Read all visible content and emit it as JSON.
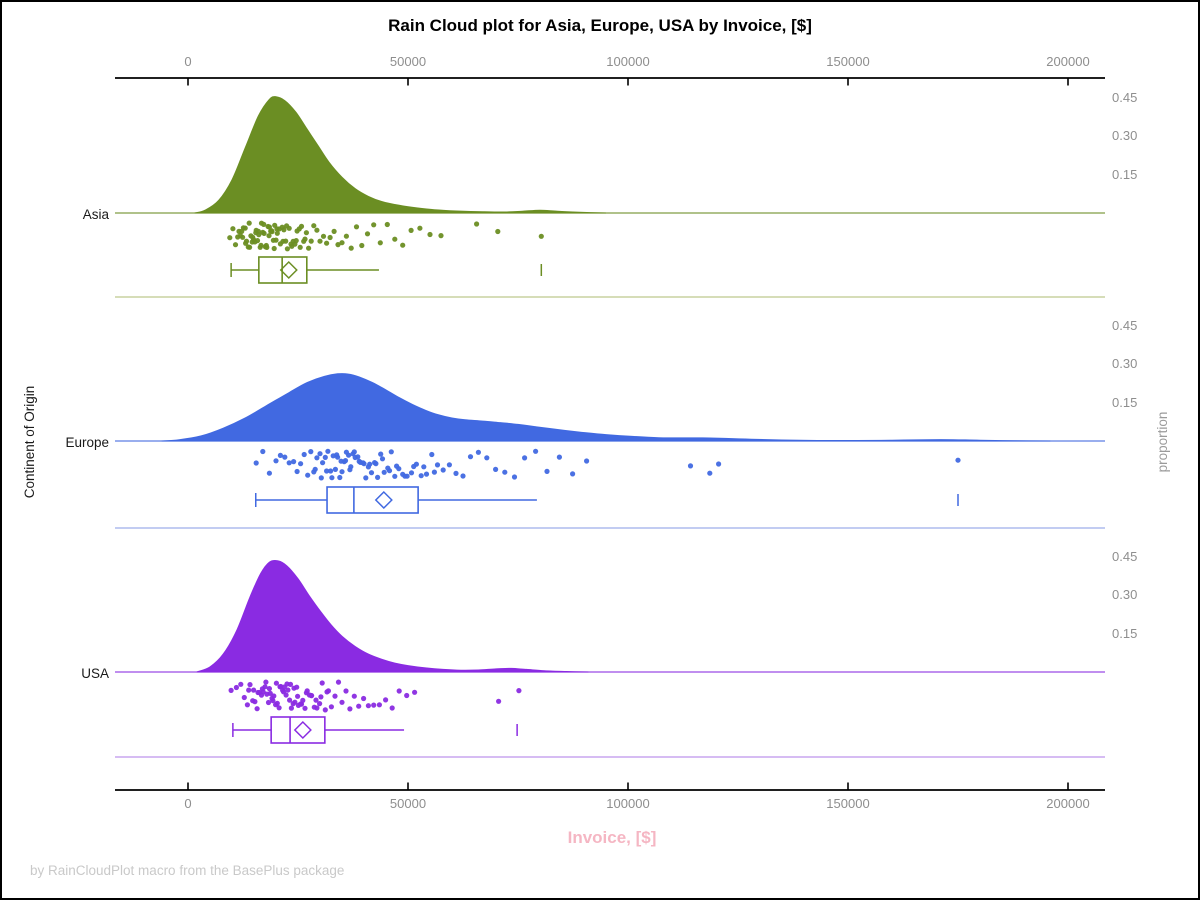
{
  "title": "Rain Cloud plot for Asia, Europe, USA by Invoice, [$]",
  "xlabel": "Invoice, [$]",
  "ylabel": "Continent of Origin",
  "y2label": "proportion",
  "footer": "by RainCloudPlot macro from the BasePlus package",
  "colors": {
    "axis": "#000000",
    "tick_text": "#8e8e8e",
    "footer_text": "#c9c9c9",
    "xlabel_pink": "#f5b6c3"
  },
  "chart_data": {
    "type": "raincloud",
    "title": "Rain Cloud plot for Asia, Europe, USA by Invoice, [$]",
    "xlabel": "Invoice, [$]",
    "ylabel": "Continent of Origin",
    "proportion_label": "proportion",
    "x_axis": {
      "ticks": [
        0,
        50000,
        100000,
        150000,
        200000
      ],
      "tick_labels": [
        "0",
        "50000",
        "100000",
        "150000",
        "200000"
      ]
    },
    "proportion_axis": {
      "ticks": [
        0.15,
        0.3,
        0.45
      ],
      "tick_labels": [
        "0.15",
        "0.30",
        "0.45"
      ]
    },
    "groups": [
      {
        "name": "Asia",
        "color": "#6B8E23",
        "light_color": "#c8d2a0",
        "density": [
          [
            1500,
            0
          ],
          [
            4000,
            0.012
          ],
          [
            7000,
            0.05
          ],
          [
            10000,
            0.13
          ],
          [
            13000,
            0.255
          ],
          [
            16000,
            0.38
          ],
          [
            18500,
            0.445
          ],
          [
            20000,
            0.455
          ],
          [
            22000,
            0.44
          ],
          [
            24500,
            0.395
          ],
          [
            27000,
            0.33
          ],
          [
            29500,
            0.265
          ],
          [
            32000,
            0.2
          ],
          [
            35000,
            0.14
          ],
          [
            38000,
            0.095
          ],
          [
            41000,
            0.065
          ],
          [
            44000,
            0.045
          ],
          [
            48000,
            0.03
          ],
          [
            52000,
            0.02
          ],
          [
            56000,
            0.013
          ],
          [
            61000,
            0.008
          ],
          [
            67000,
            0.005
          ],
          [
            72000,
            0.004
          ],
          [
            76000,
            0.007
          ],
          [
            80000,
            0.011
          ],
          [
            84000,
            0.007
          ],
          [
            89000,
            0.003
          ],
          [
            95000,
            0
          ]
        ],
        "box": {
          "whisker_low": 9800,
          "q1": 16100,
          "median": 21400,
          "mean": 22900,
          "q3": 27000,
          "whisker_high": 43400,
          "far_outlier": 80300
        },
        "rain": [
          9500,
          10200,
          10800,
          11300,
          11600,
          11900,
          12200,
          12400,
          12600,
          13000,
          13100,
          13300,
          13700,
          13900,
          14000,
          14300,
          14600,
          14700,
          14900,
          15200,
          15400,
          15500,
          15800,
          16000,
          16100,
          16400,
          16600,
          16700,
          17000,
          17200,
          17300,
          17600,
          17800,
          17900,
          18200,
          18400,
          18500,
          18800,
          19000,
          19100,
          19400,
          19600,
          19700,
          20000,
          20200,
          20300,
          20700,
          21000,
          21400,
          21600,
          21800,
          22200,
          22400,
          22600,
          23000,
          23400,
          23600,
          23900,
          24300,
          24600,
          24800,
          25300,
          25500,
          25800,
          26300,
          26600,
          26900,
          27400,
          28000,
          28600,
          29300,
          30000,
          30800,
          31500,
          32300,
          33200,
          34100,
          35000,
          36000,
          37100,
          38300,
          39500,
          40800,
          42200,
          43700,
          45300,
          47000,
          48800,
          50700,
          52700,
          55000,
          57500,
          65600,
          70400,
          80300
        ]
      },
      {
        "name": "Europe",
        "color": "#4169E1",
        "light_color": "#adbcee",
        "density": [
          [
            -6000,
            0
          ],
          [
            -2000,
            0.005
          ],
          [
            3000,
            0.02
          ],
          [
            8000,
            0.05
          ],
          [
            13000,
            0.09
          ],
          [
            18000,
            0.14
          ],
          [
            23000,
            0.19
          ],
          [
            27000,
            0.228
          ],
          [
            31000,
            0.253
          ],
          [
            34000,
            0.263
          ],
          [
            36500,
            0.262
          ],
          [
            39000,
            0.25
          ],
          [
            42000,
            0.228
          ],
          [
            45000,
            0.2
          ],
          [
            48000,
            0.17
          ],
          [
            51000,
            0.143
          ],
          [
            54000,
            0.12
          ],
          [
            57000,
            0.102
          ],
          [
            60000,
            0.09
          ],
          [
            63000,
            0.083
          ],
          [
            67000,
            0.078
          ],
          [
            71000,
            0.072
          ],
          [
            75000,
            0.065
          ],
          [
            79000,
            0.056
          ],
          [
            84000,
            0.045
          ],
          [
            89000,
            0.035
          ],
          [
            95000,
            0.025
          ],
          [
            101000,
            0.018
          ],
          [
            107000,
            0.013
          ],
          [
            112000,
            0.012
          ],
          [
            117000,
            0.012
          ],
          [
            122000,
            0.01
          ],
          [
            128000,
            0.007
          ],
          [
            135000,
            0.004
          ],
          [
            143000,
            0.002
          ],
          [
            152000,
            0.002
          ],
          [
            160000,
            0.003
          ],
          [
            168000,
            0.005
          ],
          [
            174000,
            0.005
          ],
          [
            180000,
            0.003
          ],
          [
            188000,
            0.001
          ],
          [
            196000,
            0
          ]
        ],
        "box": {
          "whisker_low": 15400,
          "q1": 31600,
          "median": 37700,
          "mean": 44500,
          "q3": 52300,
          "whisker_high": 79300,
          "far_outlier": 175000
        },
        "rain": [
          15500,
          17000,
          18500,
          20000,
          21000,
          22000,
          23000,
          24000,
          24800,
          25600,
          26400,
          27200,
          27900,
          28600,
          28900,
          29300,
          30000,
          30300,
          30600,
          31200,
          31500,
          31800,
          32400,
          32700,
          33000,
          33500,
          33800,
          34000,
          34500,
          34800,
          35000,
          35500,
          35800,
          36000,
          36500,
          36800,
          37000,
          37500,
          37800,
          38000,
          38600,
          38900,
          39200,
          39800,
          40000,
          40400,
          41000,
          41300,
          41700,
          42400,
          42700,
          43100,
          43800,
          44200,
          44600,
          45400,
          45800,
          46200,
          47000,
          47400,
          47900,
          48800,
          49300,
          49800,
          50800,
          51300,
          51900,
          53000,
          53600,
          54200,
          55400,
          56000,
          56700,
          58000,
          59400,
          60900,
          62500,
          64200,
          66000,
          67900,
          69900,
          72000,
          74200,
          76500,
          79000,
          81600,
          84400,
          87400,
          90600,
          114200,
          118600,
          120600,
          175000
        ]
      },
      {
        "name": "USA",
        "color": "#8A2BE2",
        "light_color": "#c9a6ef",
        "density": [
          [
            2000,
            0
          ],
          [
            5000,
            0.02
          ],
          [
            8000,
            0.07
          ],
          [
            11000,
            0.16
          ],
          [
            14000,
            0.29
          ],
          [
            16500,
            0.385
          ],
          [
            18500,
            0.43
          ],
          [
            20500,
            0.435
          ],
          [
            22500,
            0.415
          ],
          [
            25000,
            0.365
          ],
          [
            27500,
            0.3
          ],
          [
            30000,
            0.24
          ],
          [
            32500,
            0.185
          ],
          [
            35000,
            0.14
          ],
          [
            38000,
            0.1
          ],
          [
            41000,
            0.07
          ],
          [
            44000,
            0.05
          ],
          [
            47000,
            0.035
          ],
          [
            50000,
            0.025
          ],
          [
            54000,
            0.016
          ],
          [
            58000,
            0.01
          ],
          [
            62000,
            0.007
          ],
          [
            66000,
            0.008
          ],
          [
            70000,
            0.012
          ],
          [
            73500,
            0.014
          ],
          [
            77000,
            0.01
          ],
          [
            81000,
            0.005
          ],
          [
            86000,
            0.002
          ],
          [
            91000,
            0
          ]
        ],
        "box": {
          "whisker_low": 10200,
          "q1": 18900,
          "median": 23200,
          "mean": 26100,
          "q3": 31100,
          "whisker_high": 49100,
          "far_outlier": 74800
        },
        "rain": [
          9800,
          11000,
          12000,
          12800,
          13500,
          13800,
          14100,
          14700,
          14900,
          15200,
          15700,
          15900,
          16200,
          16700,
          16900,
          17100,
          17500,
          17700,
          17900,
          18300,
          18500,
          18700,
          19100,
          19300,
          19500,
          19900,
          20100,
          20300,
          20700,
          20900,
          21100,
          21500,
          21700,
          21900,
          22300,
          22500,
          22700,
          23100,
          23300,
          23500,
          23900,
          24100,
          24300,
          24700,
          24900,
          25100,
          25600,
          25800,
          26100,
          26600,
          26900,
          27100,
          27600,
          28000,
          28100,
          28700,
          29100,
          29300,
          29900,
          30200,
          30500,
          31200,
          31600,
          31900,
          32600,
          33400,
          34200,
          35000,
          35900,
          36800,
          37800,
          38800,
          39900,
          41000,
          42200,
          43500,
          44900,
          46400,
          48000,
          49700,
          51500,
          70600,
          75200
        ]
      }
    ]
  }
}
